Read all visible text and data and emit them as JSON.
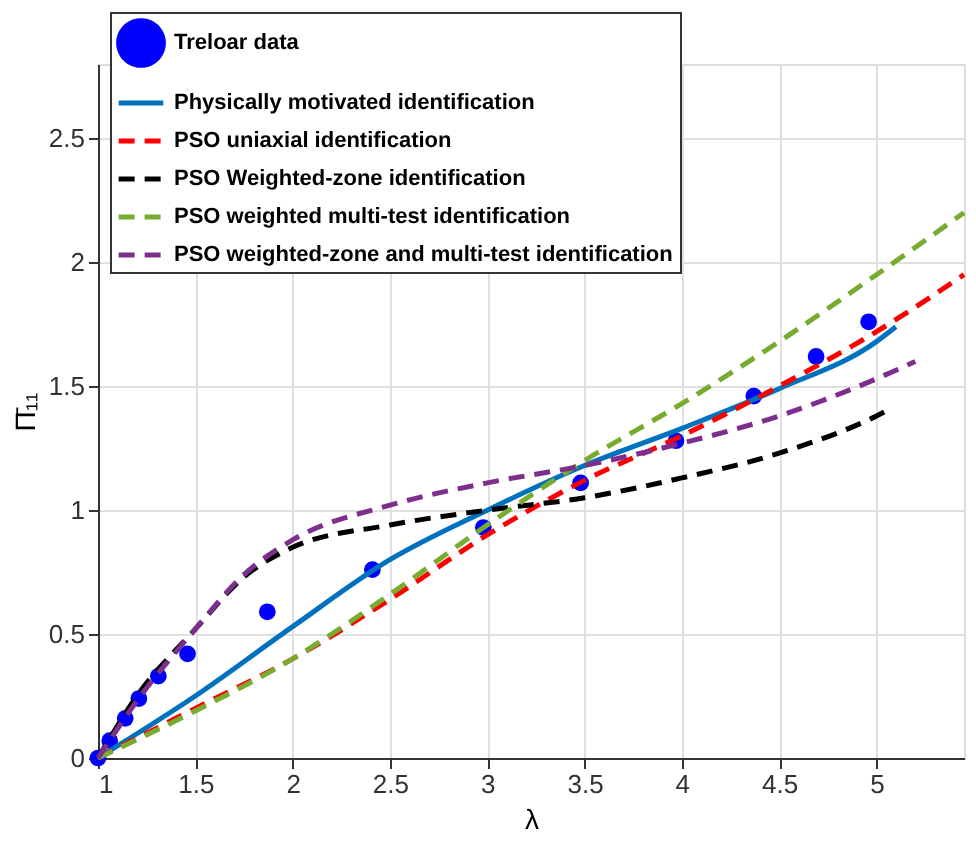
{
  "chart_data": {
    "type": "line",
    "xlabel": "λ",
    "ylabel": "Π̄₁₁",
    "xlim": [
      1,
      5.45
    ],
    "xticks": [
      1,
      1.5,
      2,
      2.5,
      3,
      3.5,
      4,
      4.5,
      5
    ],
    "ylim": [
      0,
      2.8
    ],
    "yticks": [
      0,
      0.5,
      1,
      1.5,
      2,
      2.5
    ],
    "grid": true,
    "legend": "top left",
    "series": [
      {
        "name": "Treloar data",
        "type": "scatter",
        "marker": "circle",
        "color": "#0000ff",
        "x": [
          1,
          1.06,
          1.14,
          1.21,
          1.31,
          1.46,
          1.87,
          2.41,
          2.98,
          3.48,
          3.97,
          4.37,
          4.69,
          4.96
        ],
        "values": [
          0,
          0.07,
          0.16,
          0.24,
          0.33,
          0.42,
          0.59,
          0.76,
          0.93,
          1.11,
          1.28,
          1.46,
          1.62,
          1.76
        ]
      },
      {
        "name": "Physically motivated identification",
        "line_style": "solid",
        "color": "#0072bd",
        "x": [
          1,
          1.5,
          2,
          2.5,
          3,
          3.5,
          4,
          4.5,
          5,
          5.1
        ],
        "values": [
          0,
          0.25,
          0.53,
          0.8,
          1.0,
          1.18,
          1.33,
          1.49,
          1.68,
          1.74
        ]
      },
      {
        "name": "PSO uniaxial identification",
        "line_style": "dashed",
        "color": "#ff0000",
        "x": [
          1,
          1.5,
          2,
          2.5,
          3,
          3.5,
          4,
          4.5,
          5,
          5.45
        ],
        "values": [
          0,
          0.2,
          0.4,
          0.64,
          0.9,
          1.12,
          1.3,
          1.5,
          1.72,
          1.95
        ]
      },
      {
        "name": "PSO Weighted-zone identification",
        "line_style": "dashed",
        "color": "#000000",
        "x": [
          1,
          1.2,
          1.5,
          1.75,
          2,
          2.5,
          3,
          3.5,
          4,
          4.5,
          5,
          5.05
        ],
        "values": [
          0,
          0.25,
          0.52,
          0.73,
          0.85,
          0.94,
          1.0,
          1.05,
          1.13,
          1.23,
          1.38,
          1.4
        ]
      },
      {
        "name": "PSO weighted multi-test identification",
        "line_style": "dashed",
        "color": "#77ac30",
        "x": [
          1,
          1.5,
          2,
          2.5,
          3,
          3.5,
          4,
          4.5,
          5,
          5.45
        ],
        "values": [
          0,
          0.19,
          0.4,
          0.66,
          0.94,
          1.2,
          1.43,
          1.68,
          1.95,
          2.2
        ]
      },
      {
        "name": "PSO weighted-zone and multi-test identification",
        "line_style": "dashed",
        "color": "#7e2f8e",
        "x": [
          1,
          1.2,
          1.5,
          1.75,
          2,
          2.5,
          3,
          3.5,
          4,
          4.5,
          5,
          5.2
        ],
        "values": [
          0,
          0.23,
          0.52,
          0.74,
          0.88,
          1.02,
          1.11,
          1.18,
          1.27,
          1.38,
          1.53,
          1.6
        ]
      }
    ]
  }
}
